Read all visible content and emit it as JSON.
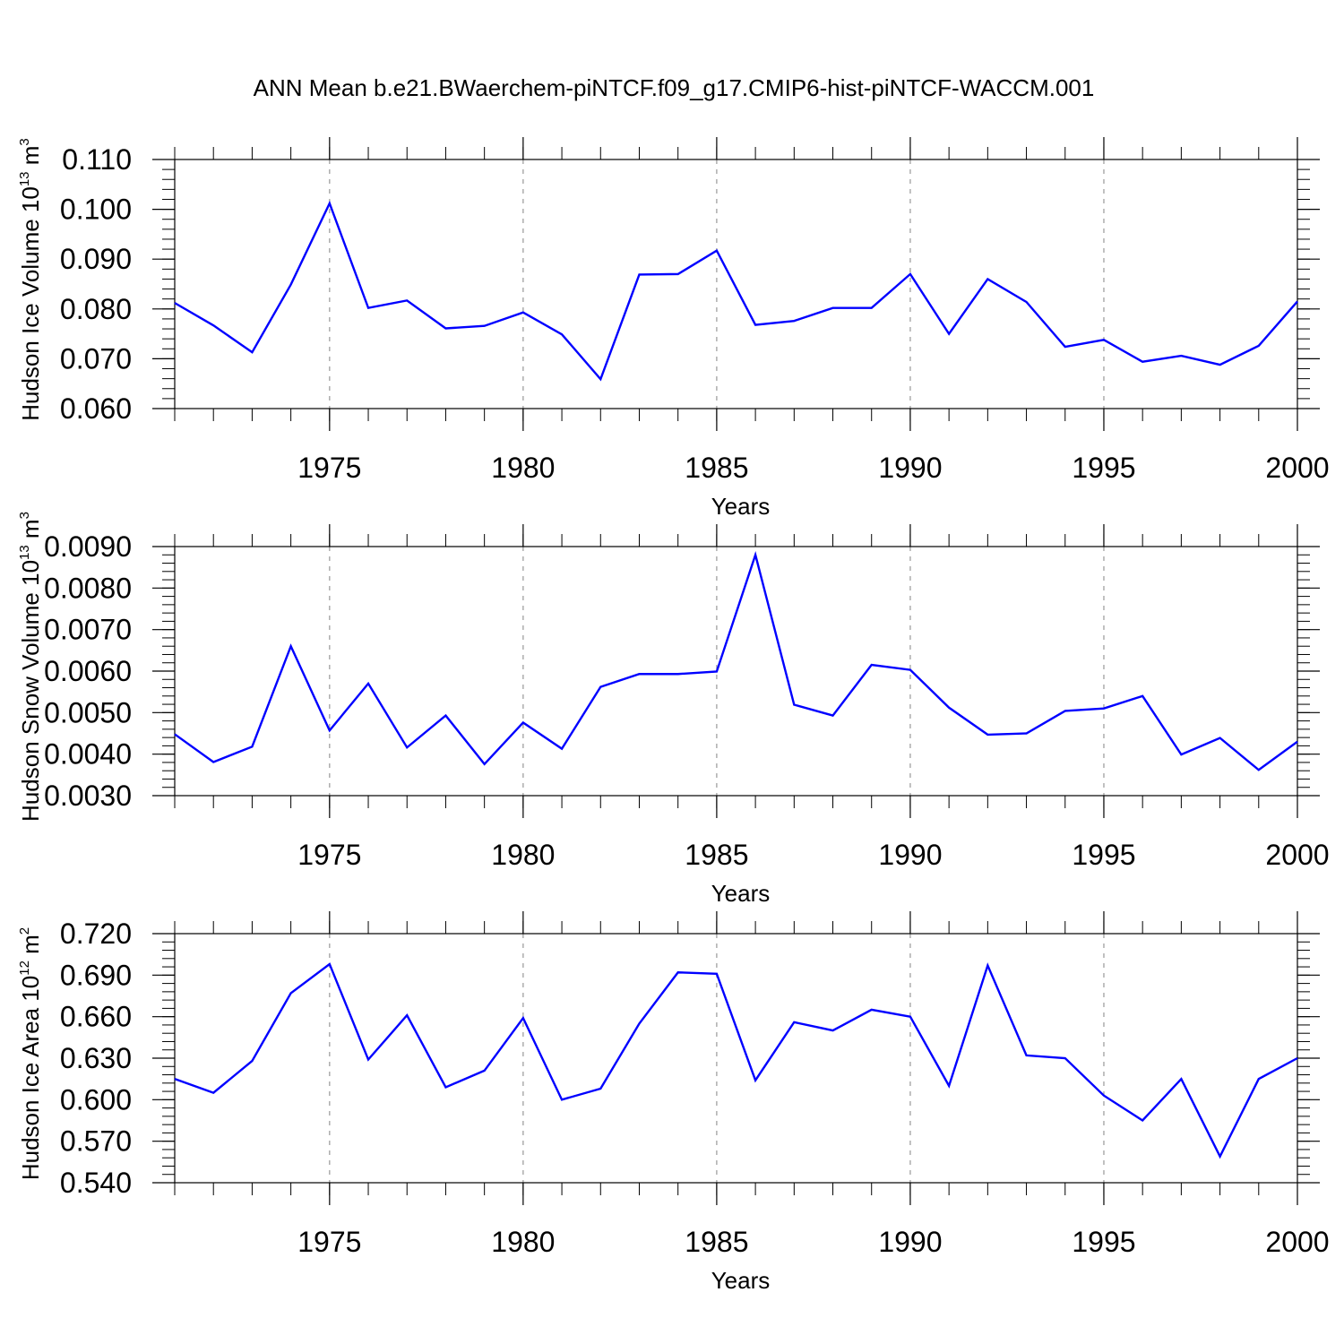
{
  "title": "ANN Mean b.e21.BWaerchem-piNTCF.f09_g17.CMIP6-hist-piNTCF-WACCM.001",
  "colors": {
    "line": "#0000ff",
    "axis": "#000000",
    "grid": "#a0a0a0"
  },
  "chart_data": [
    {
      "type": "line",
      "xlabel": "Years",
      "ylabel_main": "Hudson Ice Volume 10",
      "ylabel_exp": "13",
      "ylabel_unit": " m",
      "ylabel_unit_exp": "3",
      "xlim": [
        1971,
        2000
      ],
      "ylim": [
        0.06,
        0.11
      ],
      "x_ticks": [
        1975,
        1980,
        1985,
        1990,
        1995,
        2000
      ],
      "x_tick_labels": [
        "1975",
        "1980",
        "1985",
        "1990",
        "1995",
        "2000"
      ],
      "y_ticks": [
        0.06,
        0.07,
        0.08,
        0.09,
        0.1,
        0.11
      ],
      "y_tick_labels": [
        "0.060",
        "0.070",
        "0.080",
        "0.090",
        "0.100",
        "0.110"
      ],
      "y_minor_step": 0.002,
      "x_minor_step": 1,
      "grid": "x-dashed",
      "series": [
        {
          "x": [
            1971,
            1972,
            1973,
            1974,
            1975,
            1976,
            1977,
            1978,
            1979,
            1980,
            1981,
            1982,
            1983,
            1984,
            1985,
            1986,
            1987,
            1988,
            1989,
            1990,
            1991,
            1992,
            1993,
            1994,
            1995,
            1996,
            1997,
            1998,
            1999,
            2000
          ],
          "values": [
            0.0812,
            0.0767,
            0.0713,
            0.0849,
            0.1012,
            0.0802,
            0.0817,
            0.0761,
            0.0766,
            0.0793,
            0.0749,
            0.0659,
            0.0869,
            0.087,
            0.0917,
            0.0768,
            0.0776,
            0.0802,
            0.0802,
            0.087,
            0.075,
            0.086,
            0.0814,
            0.0724,
            0.0738,
            0.0694,
            0.0706,
            0.0688,
            0.0726,
            0.0815
          ]
        }
      ]
    },
    {
      "type": "line",
      "xlabel": "Years",
      "ylabel_main": "Hudson Snow Volume 10",
      "ylabel_exp": "13",
      "ylabel_unit": " m",
      "ylabel_unit_exp": "3",
      "xlim": [
        1971,
        2000
      ],
      "ylim": [
        0.003,
        0.009
      ],
      "x_ticks": [
        1975,
        1980,
        1985,
        1990,
        1995,
        2000
      ],
      "x_tick_labels": [
        "1975",
        "1980",
        "1985",
        "1990",
        "1995",
        "2000"
      ],
      "y_ticks": [
        0.003,
        0.004,
        0.005,
        0.006,
        0.007,
        0.008,
        0.009
      ],
      "y_tick_labels": [
        "0.0030",
        "0.0040",
        "0.0050",
        "0.0060",
        "0.0070",
        "0.0080",
        "0.0090"
      ],
      "y_minor_step": 0.0002,
      "x_minor_step": 1,
      "grid": "x-dashed",
      "series": [
        {
          "x": [
            1971,
            1972,
            1973,
            1974,
            1975,
            1976,
            1977,
            1978,
            1979,
            1980,
            1981,
            1982,
            1983,
            1984,
            1985,
            1986,
            1987,
            1988,
            1989,
            1990,
            1991,
            1992,
            1993,
            1994,
            1995,
            1996,
            1997,
            1998,
            1999,
            2000
          ],
          "values": [
            0.00448,
            0.00381,
            0.00418,
            0.0066,
            0.00457,
            0.0057,
            0.00416,
            0.00493,
            0.00376,
            0.00476,
            0.00413,
            0.00562,
            0.00593,
            0.00593,
            0.00599,
            0.0088,
            0.00519,
            0.00493,
            0.00615,
            0.00603,
            0.00512,
            0.00447,
            0.0045,
            0.00504,
            0.0051,
            0.0054,
            0.00399,
            0.00439,
            0.00362,
            0.0043
          ]
        }
      ]
    },
    {
      "type": "line",
      "xlabel": "Years",
      "ylabel_main": "Hudson Ice Area 10",
      "ylabel_exp": "12",
      "ylabel_unit": " m",
      "ylabel_unit_exp": "2",
      "xlim": [
        1971,
        2000
      ],
      "ylim": [
        0.54,
        0.72
      ],
      "x_ticks": [
        1975,
        1980,
        1985,
        1990,
        1995,
        2000
      ],
      "x_tick_labels": [
        "1975",
        "1980",
        "1985",
        "1990",
        "1995",
        "2000"
      ],
      "y_ticks": [
        0.54,
        0.57,
        0.6,
        0.63,
        0.66,
        0.69,
        0.72
      ],
      "y_tick_labels": [
        "0.540",
        "0.570",
        "0.600",
        "0.630",
        "0.660",
        "0.690",
        "0.720"
      ],
      "y_minor_step": 0.006,
      "x_minor_step": 1,
      "grid": "x-dashed",
      "series": [
        {
          "x": [
            1971,
            1972,
            1973,
            1974,
            1975,
            1976,
            1977,
            1978,
            1979,
            1980,
            1981,
            1982,
            1983,
            1984,
            1985,
            1986,
            1987,
            1988,
            1989,
            1990,
            1991,
            1992,
            1993,
            1994,
            1995,
            1996,
            1997,
            1998,
            1999,
            2000
          ],
          "values": [
            0.615,
            0.605,
            0.628,
            0.677,
            0.698,
            0.629,
            0.661,
            0.609,
            0.621,
            0.659,
            0.6,
            0.608,
            0.655,
            0.692,
            0.691,
            0.614,
            0.656,
            0.65,
            0.665,
            0.66,
            0.61,
            0.697,
            0.632,
            0.63,
            0.603,
            0.585,
            0.615,
            0.559,
            0.615,
            0.63
          ]
        }
      ]
    }
  ]
}
